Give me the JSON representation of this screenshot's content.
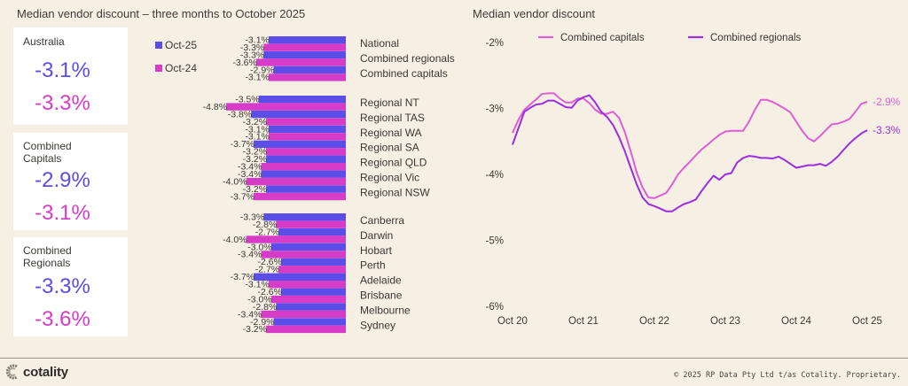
{
  "left_title": "Median vendor discount – three months to October 2025",
  "right_title": "Median vendor discount",
  "colors": {
    "oct25": "#5b4de8",
    "oct24": "#d63cc8",
    "capitals_line": "#dc5fd4",
    "regionals_line": "#9a2fe0",
    "background": "#f6efe3"
  },
  "cards": [
    {
      "label": "Australia",
      "oct25": "-3.1%",
      "oct24": "-3.3%"
    },
    {
      "label": "Combined Capitals",
      "oct25": "-2.9%",
      "oct24": "-3.1%"
    },
    {
      "label": "Combined Regionals",
      "oct25": "-3.3%",
      "oct24": "-3.6%"
    }
  ],
  "bar_legend": {
    "oct25": "Oct-25",
    "oct24": "Oct-24"
  },
  "footer": {
    "logo_text": "cotality",
    "logo_icon": "cotality-logo-icon",
    "copyright": "© 2025 RP Data Pty Ltd t/as Cotality. Proprietary."
  },
  "chart_data": [
    {
      "type": "bar",
      "orientation": "horizontal",
      "title": "Median vendor discount – three months to October 2025",
      "series_names": [
        "Oct-25",
        "Oct-24"
      ],
      "groups": [
        {
          "categories": [
            "National",
            "Combined regionals",
            "Combined capitals"
          ],
          "series": [
            {
              "name": "Oct-25",
              "values": [
                -3.1,
                -3.3,
                -2.9
              ]
            },
            {
              "name": "Oct-24",
              "values": [
                -3.3,
                -3.6,
                -3.1
              ]
            }
          ]
        },
        {
          "categories": [
            "Regional NT",
            "Regional TAS",
            "Regional WA",
            "Regional SA",
            "Regional QLD",
            "Regional Vic",
            "Regional NSW"
          ],
          "series": [
            {
              "name": "Oct-25",
              "values": [
                -3.5,
                -3.8,
                -3.1,
                -3.7,
                -3.2,
                -3.4,
                -3.2
              ]
            },
            {
              "name": "Oct-24",
              "values": [
                -4.8,
                -3.2,
                -3.1,
                -3.2,
                -3.4,
                -4.0,
                -3.7
              ]
            }
          ]
        },
        {
          "categories": [
            "Canberra",
            "Darwin",
            "Hobart",
            "Perth",
            "Adelaide",
            "Brisbane",
            "Melbourne",
            "Sydney"
          ],
          "series": [
            {
              "name": "Oct-25",
              "values": [
                -3.3,
                -2.7,
                -3.0,
                -2.6,
                -3.7,
                -2.6,
                -2.8,
                -2.9
              ]
            },
            {
              "name": "Oct-24",
              "values": [
                -2.8,
                -4.0,
                -3.4,
                -2.7,
                -3.1,
                -3.0,
                -3.4,
                -3.2
              ]
            }
          ]
        }
      ],
      "data_label_format": "{v}%"
    },
    {
      "type": "line",
      "title": "Median vendor discount",
      "xlabel": "",
      "ylabel": "",
      "ylim": [
        -6,
        -2
      ],
      "yticks": [
        "-2%",
        "-3%",
        "-4%",
        "-5%",
        "-6%"
      ],
      "ytick_values": [
        -2,
        -3,
        -4,
        -5,
        -6
      ],
      "xticks": [
        "Oct 20",
        "Oct 21",
        "Oct 22",
        "Oct 23",
        "Oct 24",
        "Oct 25"
      ],
      "x_start": "Oct 2020",
      "x_end": "Oct 2025",
      "x_frequency": "monthly",
      "legend": "top",
      "grid": false,
      "series": [
        {
          "name": "Combined capitals",
          "end_label": "-2.9%",
          "values": [
            -3.37,
            -3.17,
            -3.02,
            -2.94,
            -2.86,
            -2.78,
            -2.77,
            -2.77,
            -2.85,
            -2.91,
            -2.91,
            -2.85,
            -2.85,
            -2.92,
            -3.02,
            -3.08,
            -3.08,
            -3.05,
            -3.14,
            -3.36,
            -3.65,
            -3.97,
            -4.2,
            -4.35,
            -4.36,
            -4.32,
            -4.28,
            -4.15,
            -4.0,
            -3.9,
            -3.81,
            -3.71,
            -3.62,
            -3.55,
            -3.47,
            -3.4,
            -3.35,
            -3.34,
            -3.34,
            -3.34,
            -3.2,
            -3.02,
            -2.87,
            -2.87,
            -2.9,
            -2.95,
            -3.0,
            -3.06,
            -3.2,
            -3.34,
            -3.45,
            -3.5,
            -3.42,
            -3.33,
            -3.24,
            -3.23,
            -3.2,
            -3.16,
            -3.05,
            -2.93,
            -2.9
          ]
        },
        {
          "name": "Combined regionals",
          "end_label": "-3.3%",
          "values": [
            -3.55,
            -3.3,
            -3.05,
            -2.99,
            -2.94,
            -2.93,
            -2.88,
            -2.88,
            -2.93,
            -2.98,
            -2.99,
            -2.88,
            -2.83,
            -2.8,
            -2.91,
            -3.05,
            -3.13,
            -3.25,
            -3.43,
            -3.65,
            -3.9,
            -4.15,
            -4.35,
            -4.45,
            -4.48,
            -4.52,
            -4.56,
            -4.56,
            -4.5,
            -4.45,
            -4.42,
            -4.38,
            -4.25,
            -4.13,
            -4.02,
            -4.08,
            -4.0,
            -3.98,
            -3.82,
            -3.75,
            -3.72,
            -3.73,
            -3.75,
            -3.75,
            -3.76,
            -3.73,
            -3.78,
            -3.84,
            -3.9,
            -3.88,
            -3.86,
            -3.86,
            -3.84,
            -3.87,
            -3.81,
            -3.73,
            -3.63,
            -3.53,
            -3.45,
            -3.38,
            -3.33
          ]
        }
      ]
    }
  ]
}
